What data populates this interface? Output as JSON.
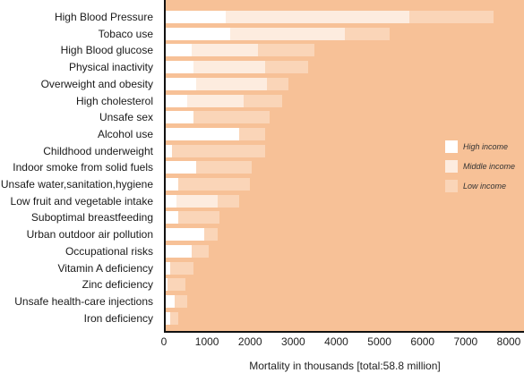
{
  "chart_data": {
    "type": "bar",
    "stacked": true,
    "orientation": "horizontal",
    "title": "",
    "xlabel": "Mortality in thousands [total:58.8 million]",
    "ylabel": "",
    "xlim": [
      0,
      8000
    ],
    "xticks": [
      0,
      1000,
      2000,
      3000,
      4000,
      5000,
      6000,
      7000,
      8000
    ],
    "grid": false,
    "legend_position": "right",
    "categories": [
      "High Blood Pressure",
      "Tobaco use",
      "High Blood glucose",
      "Physical inactivity",
      "Overweight and obesity",
      "High cholesterol",
      "Unsafe sex",
      "Alcohol use",
      "Childhood underweight",
      "Indoor smoke from solid fuels",
      "Unsafe water,sanitation,hygiene",
      "Low fruit and vegetable intake",
      "Suboptimal breastfeeding",
      "Urban outdoor air pollution",
      "Occupational risks",
      "Vitamin A deficiency",
      "Zinc deficiency",
      "Unsafe health-care injections",
      "Iron deficiency"
    ],
    "series": [
      {
        "name": "High income",
        "color": "#ffffff",
        "values": [
          1400,
          1500,
          600,
          650,
          700,
          500,
          650,
          1700,
          150,
          700,
          300,
          250,
          300,
          900,
          600,
          100,
          50,
          200,
          100
        ]
      },
      {
        "name": "Middle income",
        "color": "#fdecdf",
        "values": [
          4250,
          2650,
          1550,
          1650,
          1650,
          1300,
          0,
          0,
          0,
          0,
          0,
          950,
          0,
          0,
          0,
          0,
          0,
          0,
          0
        ]
      },
      {
        "name": "Low income",
        "color": "#fad5b8",
        "values": [
          1950,
          1050,
          1300,
          1000,
          500,
          900,
          1750,
          600,
          2150,
          1300,
          1650,
          500,
          950,
          300,
          400,
          550,
          400,
          300,
          200
        ]
      }
    ]
  }
}
